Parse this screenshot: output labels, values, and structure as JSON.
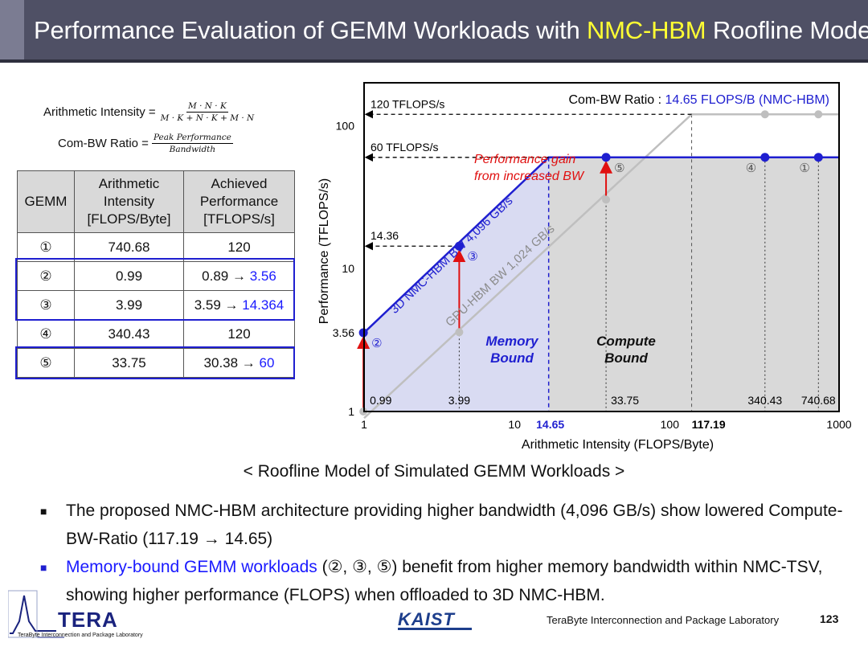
{
  "header": {
    "title_pre": "Performance Evaluation of GEMM Workloads with ",
    "title_hl": "NMC-HBM",
    "title_post": " Roofline Model"
  },
  "formulas": {
    "ai_label": "Arithmetic Intensity =",
    "ai_num": "M · N · K",
    "ai_den": "M · K + N · K + M · N",
    "cbr_label": "Com-BW Ratio =",
    "cbr_num": "Peak Performance",
    "cbr_den": "Bandwidth"
  },
  "table": {
    "headers": [
      "GEMM",
      "Arithmetic Intensity [FLOPS/Byte]",
      "Achieved Performance [TFLOPS/s]"
    ],
    "rows": [
      {
        "id": "①",
        "ai": "740.68",
        "perf": "120",
        "perf_new": ""
      },
      {
        "id": "②",
        "ai": "0.99",
        "perf": "0.89 → ",
        "perf_new": "3.56"
      },
      {
        "id": "③",
        "ai": "3.99",
        "perf": "3.59 → ",
        "perf_new": "14.364"
      },
      {
        "id": "④",
        "ai": "340.43",
        "perf": "120",
        "perf_new": ""
      },
      {
        "id": "⑤",
        "ai": "33.75",
        "perf": "30.38 → ",
        "perf_new": "60"
      }
    ]
  },
  "chart_data": {
    "type": "line",
    "title": "Com-BW Ratio : ",
    "title_value": "14.65 FLOPS/B (NMC-HBM)",
    "xlabel": "Arithmetic Intensity (FLOPS/Byte)",
    "ylabel": "Performance (TFLOPS/s)",
    "x_scale": "log",
    "y_scale": "log",
    "xlim": [
      1,
      1000
    ],
    "ylim": [
      1,
      200
    ],
    "x_ticks": [
      "1",
      "10",
      "14.65",
      "100",
      "117.19",
      "1000"
    ],
    "y_ticks": [
      "1",
      "3.56",
      "10",
      "100"
    ],
    "series": [
      {
        "name": "3D NMC-HBM BW 4,096 GB/s",
        "color": "#1f1fd0",
        "ridge_x": 14.65,
        "peak_y": 60
      },
      {
        "name": "GPU-HBM BW 1,024 GB/s",
        "color": "#bfbfbf",
        "ridge_x": 117.19,
        "peak_y": 120
      }
    ],
    "points_nmc": [
      {
        "label": "②",
        "x": 0.99,
        "y": 3.56
      },
      {
        "label": "③",
        "x": 3.99,
        "y": 14.364
      },
      {
        "label": "⑤",
        "x": 33.75,
        "y": 60
      },
      {
        "label": "④",
        "x": 340.43,
        "y": 60
      },
      {
        "label": "①",
        "x": 740.68,
        "y": 60
      }
    ],
    "points_gpu": [
      {
        "x": 0.99,
        "y": 0.89
      },
      {
        "x": 3.99,
        "y": 3.59
      },
      {
        "x": 33.75,
        "y": 30.38
      },
      {
        "x": 340.43,
        "y": 120
      },
      {
        "x": 740.68,
        "y": 120
      }
    ],
    "perf_lines": [
      {
        "label": "120 TFLOPS/s",
        "y": 120
      },
      {
        "label": "60 TFLOPS/s",
        "y": 60
      },
      {
        "label": "14.36",
        "y": 14.36
      }
    ],
    "x_value_labels": [
      "0.99",
      "3.99",
      "33.75",
      "340.43",
      "740.68"
    ],
    "annotations": {
      "gain": "Performance gain from increased BW",
      "memory_bound": "Memory Bound",
      "compute_bound": "Compute Bound"
    }
  },
  "caption": "< Roofline Model of Simulated GEMM Workloads >",
  "bullets": [
    {
      "pre": "The proposed NMC-HBM architecture providing higher bandwidth (4,096 GB/s) show lowered Compute-BW-Ratio (117.19 → 14.65)"
    },
    {
      "blue": "Memory-bound GEMM workloads",
      "post": " (②, ③, ⑤) benefit from higher memory bandwidth within NMC-TSV, showing higher performance (FLOPS) when offloaded to 3D NMC-HBM."
    }
  ],
  "footer": {
    "tera": "TERA",
    "lab_small": "TeraByte Interconnection and Package Laboratory",
    "kaist": "KAIST",
    "lab": "TeraByte Interconnection and Package Laboratory",
    "page": "123"
  },
  "colors": {
    "title_bg": "#4f5065",
    "highlight": "#ffff33",
    "nmc_blue": "#1f1fd0",
    "gain_red": "#e01010",
    "gpu_gray": "#bfbfbf"
  }
}
